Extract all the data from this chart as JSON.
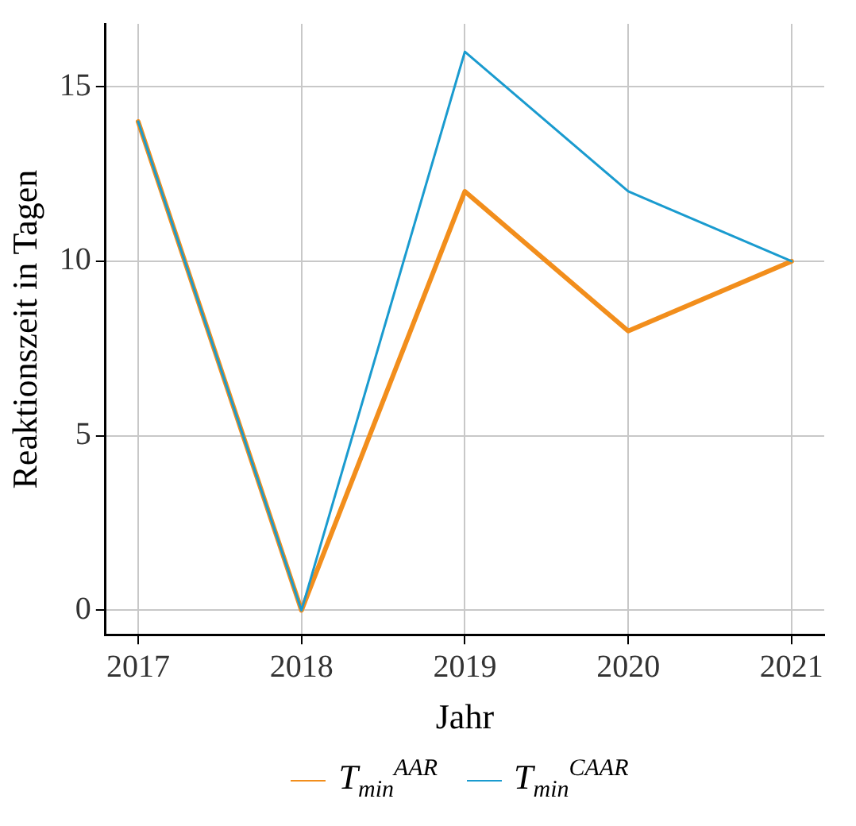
{
  "chart_data": {
    "type": "line",
    "xlabel": "Jahr",
    "ylabel": "Reaktionszeit in Tagen",
    "x": [
      2017,
      2018,
      2019,
      2020,
      2021
    ],
    "series": [
      {
        "name": "T$_{min}$$^{AAR}$",
        "color": "#f28e1c",
        "values": [
          14,
          0,
          12,
          8,
          10
        ]
      },
      {
        "name": "T$_{min}$$^{CAAR}$",
        "color": "#1a9bcf",
        "values": [
          14,
          0,
          16,
          12,
          10
        ]
      }
    ],
    "xlim": [
      2016.8,
      2021.2
    ],
    "xticks": [
      2017,
      2018,
      2019,
      2020,
      2021
    ],
    "ylim": [
      -0.7,
      16.8
    ],
    "yticks": [
      0,
      5,
      10,
      15
    ],
    "grid": true,
    "legend": "bottom",
    "marker": "none",
    "line_style": "solid"
  }
}
